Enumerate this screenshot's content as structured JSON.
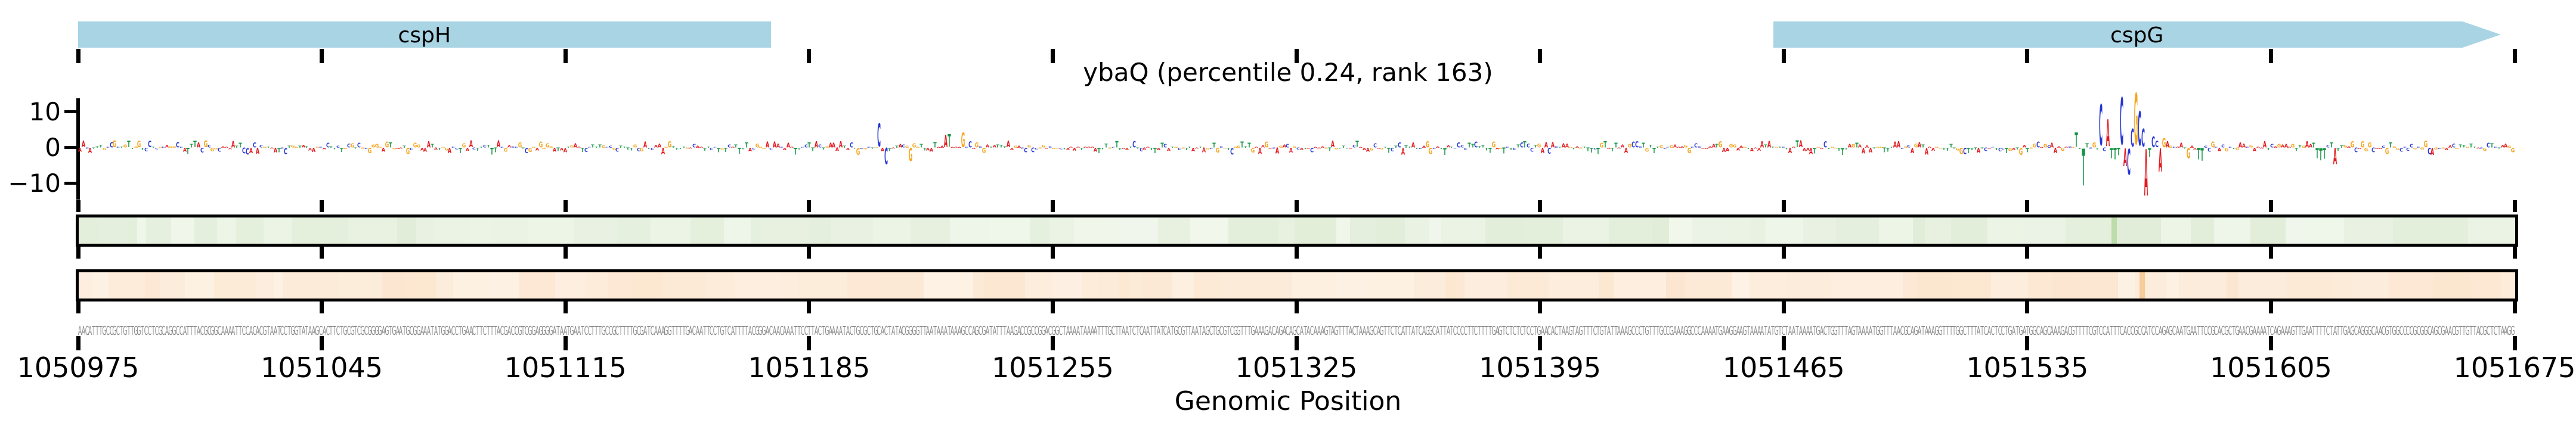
{
  "title": "ybaQ (percentile 0.24, rank 163)",
  "xlabel": "Genomic Position",
  "x_axis": {
    "start": 1050975,
    "end": 1051675,
    "tick_interval": 70,
    "tick_labels": [
      "1050975",
      "1051045",
      "1051115",
      "1051185",
      "1051255",
      "1051325",
      "1051395",
      "1051465",
      "1051535",
      "1051605",
      "1051675"
    ]
  },
  "y_axis": {
    "ticks": [
      10,
      0,
      -10
    ],
    "labels": [
      "10",
      "0",
      "−10"
    ]
  },
  "genes": [
    {
      "label": "cspH",
      "start": 1050975,
      "end": 1051174,
      "arrow": false,
      "color": "#a8d4e4"
    },
    {
      "label": "cspG",
      "start": 1051462,
      "end": 1051671,
      "arrow": true,
      "direction": "right",
      "color": "#a8d4e4"
    }
  ],
  "sequence": "AACATTTGCCGCTGTTGGTCCTCGCAGGCCATTTACGCGGCAAAATTCCACACGTAATCCTGGTATAAGCACTTCTGCGTCGCGGGGAGTGAATGCGGAAATATGGACCTGAACTTCTTTACGACCGTCGGAGGGGATAATGAATCCTTTGCCGCTTTTGCGATCAAAGGTTTTGACAATTCCTGTCATTTTACGGGACAACAAATTCCTTACTGAAAATACTGCGCTGCACTATACGGGGTTAATAAATAAAGCCAGCGATATTTAAGACCGCCGGACGGCTAAAATAAAATTTGCTTAATCTCAATTATCATGCGTTAATAGCTGCGTCGGTTTGAAAGACAGACAGCATACAAAGTAGTTTACTAAAGCAGTTCTCATTATCAGGCATTATCCCCTTCTTTTGAGTCTCTCTCCTGAACACTAAGTAGTTTCTGTATTAAAGCCCTGTTTGCCGAAAGGCCCAAAATGAAGGAAGTAAAATATGTCTAATAAAATGACTGGTTTAGTAAAATGGTTTAACGCAGATAAAGGTTTTGGCTTTATCACTCCTGATGATGGCAGCAAAGACGTTTTCGTCCATTTCACCGCCATCCAGAGCAATGAATTCCGCACGCTGAACGAAAATCAGAAAGTTGAATTTTCTATTGAGCAGGGCAACGTGGCCCCGCGGCAGCGAACGTTGTTACGCTCTAAGG",
  "logo": {
    "base_colors": {
      "A": "#e01a1f",
      "C": "#2636d4",
      "G": "#f5a41d",
      "T": "#159345"
    },
    "noise_amplitude": 1.7,
    "spikes": {
      "1051204": 6.5,
      "1051206": -4.5,
      "1051213": -3.6,
      "1051223": 3.4,
      "1051224": 3.6,
      "1051228": 4.0,
      "1051547": 4.0,
      "1051549": -10.3,
      "1051554": 11.5,
      "1051556": 7.5,
      "1051557": -2.8,
      "1051558": -3.2,
      "1051559": -2.0,
      "1051560": 13.2,
      "1051561": -5.0,
      "1051562": -7.3,
      "1051563": 5.0,
      "1051564": 14.3,
      "1051565": 9.5,
      "1051566": 5.0,
      "1051567": -13.0,
      "1051568": -2.5,
      "1051569": 3.0,
      "1051571": -6.5,
      "1051572": 2.5,
      "1051579": -2.8,
      "1051582": -3.2,
      "1051583": -3.6,
      "1051616": -2.8,
      "1051617": -3.4,
      "1051618": -3.0,
      "1051621": -4.5
    }
  },
  "tracks": [
    {
      "name": "green-track",
      "fill": "#f1f7ec",
      "stripe_rgb": [
        140,
        185,
        110
      ],
      "band_color": "#bcdcab",
      "band_position": 1051560
    },
    {
      "name": "orange-track",
      "fill": "#fdf2e5",
      "stripe_rgb": [
        245,
        165,
        90
      ],
      "band_color": "#f6cc9a",
      "band_position": 1051568
    }
  ],
  "sequence_text_color": "#8a8a8a",
  "chart_data": [
    {
      "type": "bar",
      "subtype": "per-base-importance-sequence-logo",
      "title": "ybaQ (percentile 0.24, rank 163)",
      "xlabel": "Genomic Position",
      "x_range": [
        1050975,
        1051675
      ],
      "x_tick_interval": 70,
      "ylabel": "",
      "y_ticks": [
        10,
        0,
        -10
      ],
      "ylim": [
        -16,
        16
      ],
      "grid": false,
      "legend": "none",
      "sequence_field": "sequence",
      "values_field": "logo.spikes",
      "note": "one letter per genomic base, height = importance score; unlabeled positions fluctuate within about +/-2; main motif peak spans 1051547-1051572",
      "annotations": [
        {
          "gene": "cspH",
          "span": [
            1050975,
            1051174
          ]
        },
        {
          "gene": "cspG",
          "span": [
            1051462,
            1051671
          ],
          "strand": "+"
        }
      ]
    },
    {
      "type": "heatmap",
      "subtype": "two-single-row-tracks",
      "rows": [
        {
          "tint": "green",
          "highlight_position": 1051560
        },
        {
          "tint": "orange",
          "highlight_position": 1051568
        }
      ],
      "x_range": [
        1050975,
        1051675
      ]
    }
  ]
}
